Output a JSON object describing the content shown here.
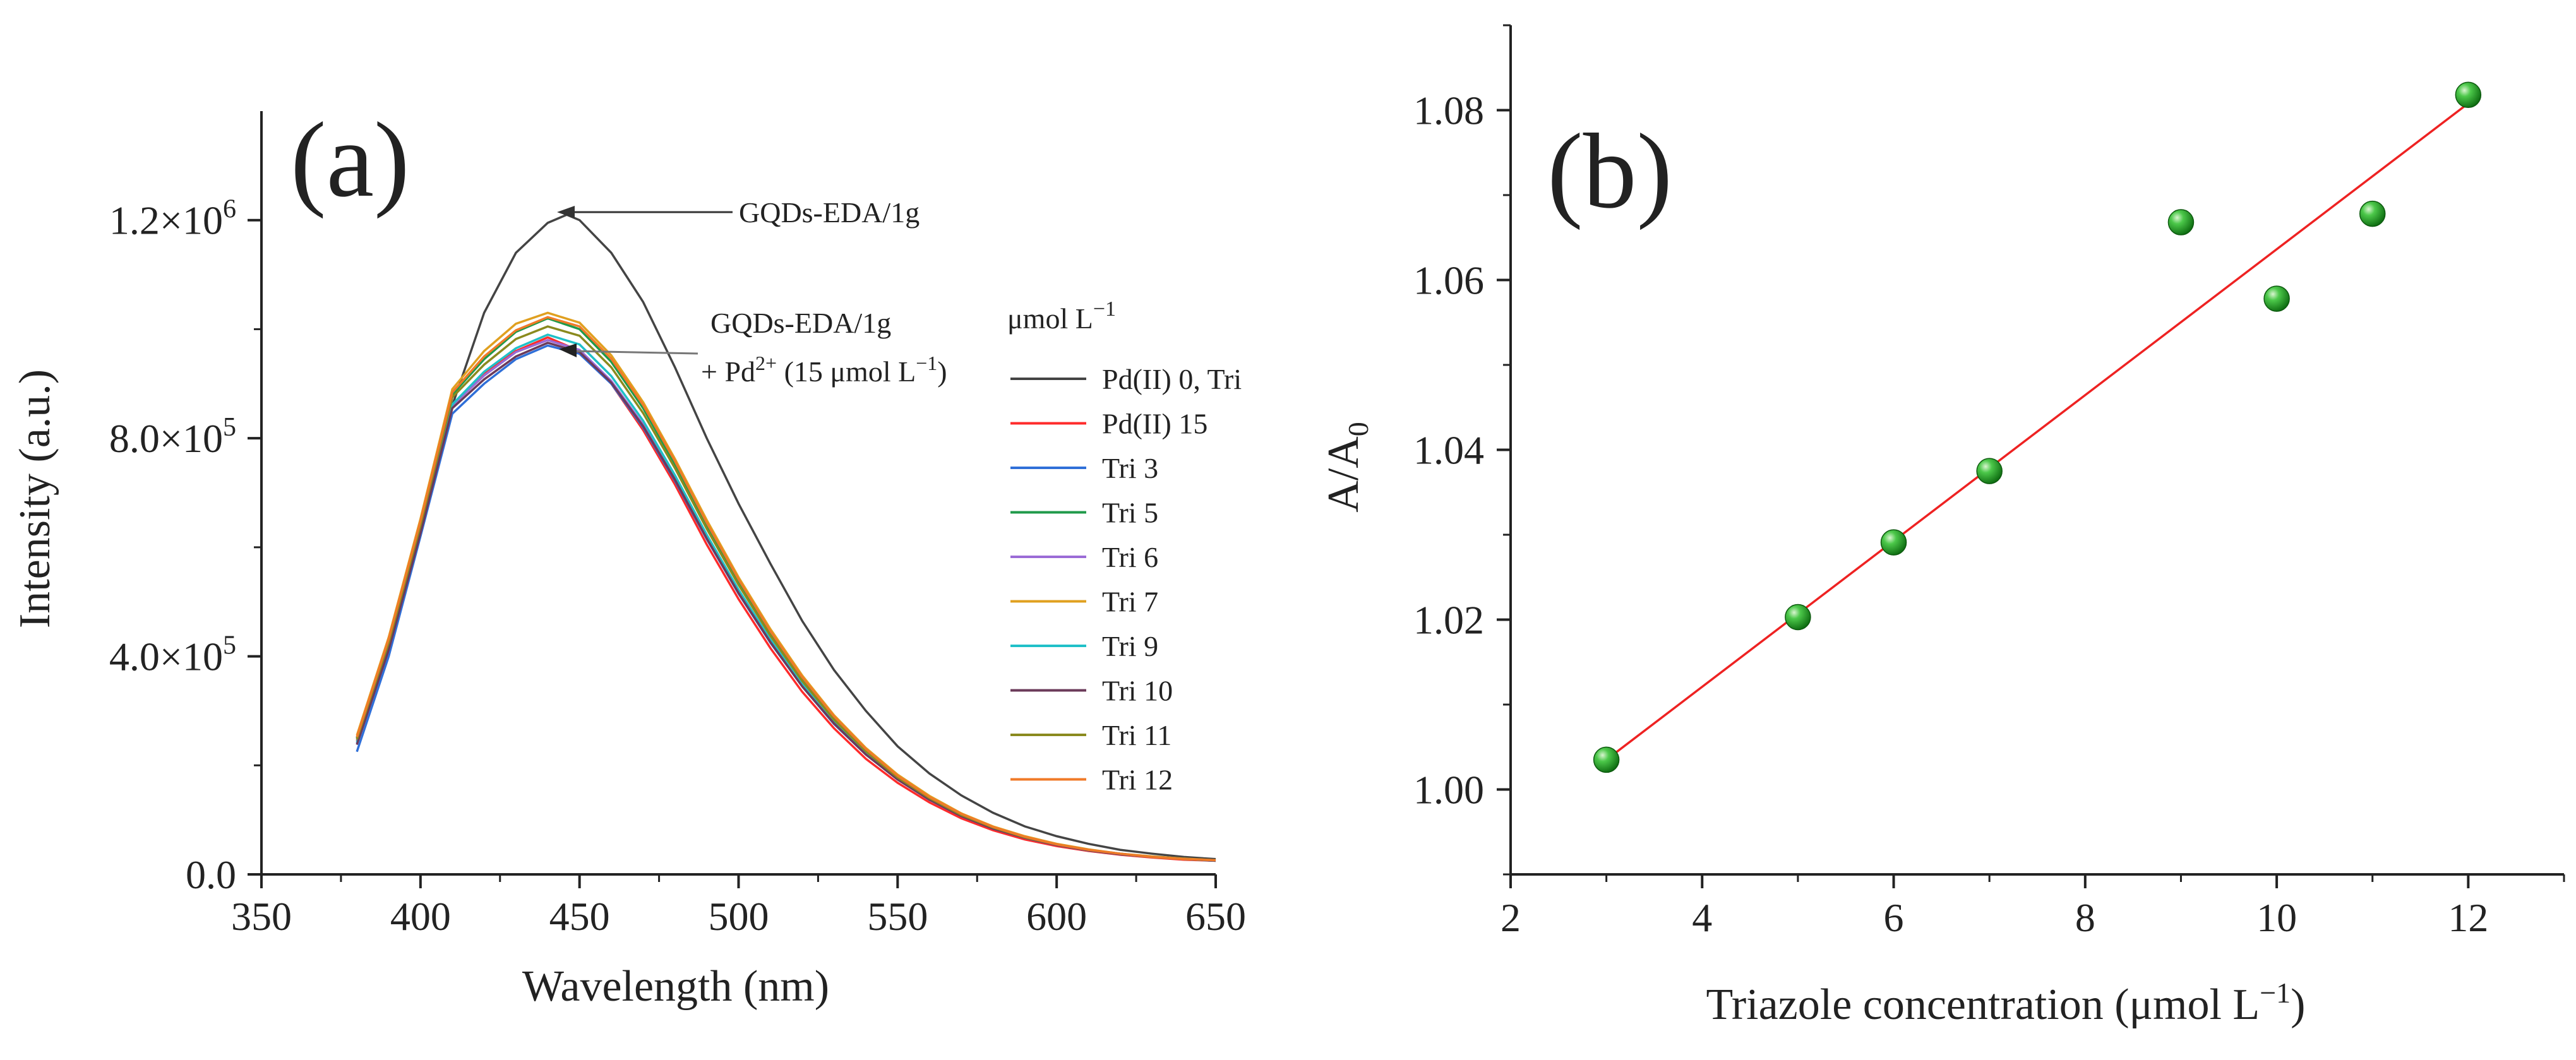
{
  "chart_data": [
    {
      "panel": "(a)",
      "type": "line",
      "xlabel": "Wavelength (nm)",
      "ylabel": "Intensity (a.u.)",
      "xlim": [
        350,
        650
      ],
      "ylim": [
        0,
        1400000
      ],
      "x_ticks": [
        350,
        400,
        450,
        500,
        550,
        600,
        650
      ],
      "x_tick_labels": [
        "350",
        "400",
        "450",
        "500",
        "550",
        "600",
        "650"
      ],
      "y_ticks": [
        0,
        400000,
        800000,
        1200000
      ],
      "y_tick_labels": [
        {
          "mantissa": "0.0",
          "exponent": ""
        },
        {
          "mantissa": "4.0×10",
          "exponent": "5"
        },
        {
          "mantissa": "8.0×10",
          "exponent": "5"
        },
        {
          "mantissa": "1.2×10",
          "exponent": "6"
        }
      ],
      "legend_title": {
        "text": "μmol L",
        "superscript": "−1"
      },
      "annotations": [
        {
          "text": "GQDs-EDA/1g",
          "arrow_to": [
            446,
            1210000
          ]
        },
        {
          "line1": "GQDs-EDA/1g",
          "line2_pre": "+ Pd",
          "line2_sup": "2+",
          "line2_mid": " (15 μmol L",
          "line2_sup2": "−1",
          "line2_post": ")",
          "arrow_to": [
            442,
            970000
          ]
        }
      ],
      "series": [
        {
          "name": "Pd(II) 0, Tri",
          "color": "#444444",
          "x": [
            380,
            390,
            400,
            410,
            420,
            430,
            440,
            446,
            450,
            460,
            470,
            480,
            490,
            500,
            510,
            520,
            530,
            540,
            550,
            560,
            570,
            580,
            590,
            600,
            610,
            620,
            630,
            640,
            650
          ],
          "y": [
            250000,
            430000,
            640000,
            860000,
            1030000,
            1140000,
            1195000,
            1210000,
            1200000,
            1140000,
            1050000,
            930000,
            800000,
            680000,
            570000,
            465000,
            375000,
            300000,
            235000,
            185000,
            145000,
            113000,
            88000,
            70000,
            56000,
            45000,
            38000,
            32000,
            28000
          ]
        },
        {
          "name": "Pd(II) 15",
          "color": "#ff2b2b",
          "x": [
            380,
            390,
            400,
            410,
            420,
            430,
            440,
            450,
            460,
            470,
            480,
            490,
            500,
            510,
            520,
            530,
            540,
            550,
            560,
            570,
            580,
            590,
            600,
            610,
            620,
            630,
            640,
            650
          ],
          "y": [
            245000,
            420000,
            630000,
            860000,
            920000,
            960000,
            985000,
            960000,
            900000,
            815000,
            715000,
            605000,
            505000,
            415000,
            335000,
            268000,
            212000,
            168000,
            132000,
            103000,
            81000,
            64000,
            52000,
            43000,
            36000,
            31000,
            27000,
            25000
          ]
        },
        {
          "name": "Tri 3",
          "color": "#2f6fd8",
          "x": [
            380,
            390,
            400,
            410,
            420,
            430,
            440,
            450,
            460,
            470,
            480,
            490,
            500,
            510,
            520,
            530,
            540,
            550,
            560,
            570,
            580,
            590,
            600,
            610,
            620,
            630,
            640,
            650
          ],
          "y": [
            225000,
            400000,
            620000,
            845000,
            900000,
            945000,
            970000,
            955000,
            900000,
            820000,
            722000,
            615000,
            515000,
            425000,
            345000,
            276000,
            220000,
            174000,
            137000,
            107000,
            84000,
            67000,
            54000,
            44000,
            37000,
            32000,
            28000,
            25000
          ]
        },
        {
          "name": "Tri 5",
          "color": "#1f9a4a",
          "x": [
            380,
            390,
            400,
            410,
            420,
            430,
            440,
            450,
            460,
            470,
            480,
            490,
            500,
            510,
            520,
            530,
            540,
            550,
            560,
            570,
            580,
            590,
            600,
            610,
            620,
            630,
            640,
            650
          ],
          "y": [
            250000,
            428000,
            645000,
            880000,
            945000,
            995000,
            1020000,
            1000000,
            940000,
            855000,
            752000,
            640000,
            536000,
            442000,
            358000,
            286000,
            227000,
            179000,
            141000,
            110000,
            86000,
            68000,
            55000,
            45000,
            38000,
            32000,
            28000,
            26000
          ]
        },
        {
          "name": "Tri 6",
          "color": "#9b6bd6",
          "x": [
            380,
            390,
            400,
            410,
            420,
            430,
            440,
            450,
            460,
            470,
            480,
            490,
            500,
            510,
            520,
            530,
            540,
            550,
            560,
            570,
            580,
            590,
            600,
            610,
            620,
            630,
            640,
            650
          ],
          "y": [
            240000,
            415000,
            630000,
            860000,
            915000,
            958000,
            980000,
            962000,
            905000,
            825000,
            726000,
            618000,
            518000,
            428000,
            347000,
            278000,
            221000,
            175000,
            138000,
            108000,
            85000,
            67000,
            54000,
            44000,
            37000,
            32000,
            28000,
            25000
          ]
        },
        {
          "name": "Tri 7",
          "color": "#e0a020",
          "x": [
            380,
            390,
            400,
            410,
            420,
            430,
            440,
            450,
            460,
            470,
            480,
            490,
            500,
            510,
            520,
            530,
            540,
            550,
            560,
            570,
            580,
            590,
            600,
            610,
            620,
            630,
            640,
            650
          ],
          "y": [
            255000,
            435000,
            652000,
            890000,
            960000,
            1010000,
            1030000,
            1012000,
            952000,
            866000,
            762000,
            650000,
            545000,
            450000,
            365000,
            292000,
            232000,
            183000,
            144000,
            112000,
            88000,
            70000,
            56000,
            46000,
            38000,
            33000,
            29000,
            26000
          ]
        },
        {
          "name": "Tri 9",
          "color": "#20c0c8",
          "x": [
            380,
            390,
            400,
            410,
            420,
            430,
            440,
            450,
            460,
            470,
            480,
            490,
            500,
            510,
            520,
            530,
            540,
            550,
            560,
            570,
            580,
            590,
            600,
            610,
            620,
            630,
            640,
            650
          ],
          "y": [
            242000,
            418000,
            632000,
            862000,
            922000,
            965000,
            990000,
            972000,
            914000,
            832000,
            732000,
            623000,
            522000,
            431000,
            349000,
            280000,
            222000,
            176000,
            138000,
            108000,
            85000,
            67000,
            54000,
            44000,
            37000,
            32000,
            28000,
            25000
          ]
        },
        {
          "name": "Tri 10",
          "color": "#6b3a5a",
          "x": [
            380,
            390,
            400,
            410,
            420,
            430,
            440,
            450,
            460,
            470,
            480,
            490,
            500,
            510,
            520,
            530,
            540,
            550,
            560,
            570,
            580,
            590,
            600,
            610,
            620,
            630,
            640,
            650
          ],
          "y": [
            238000,
            412000,
            626000,
            855000,
            908000,
            950000,
            975000,
            958000,
            902000,
            822000,
            724000,
            616000,
            516000,
            426000,
            345000,
            277000,
            220000,
            174000,
            137000,
            107000,
            84000,
            67000,
            54000,
            44000,
            37000,
            32000,
            28000,
            25000
          ]
        },
        {
          "name": "Tri 11",
          "color": "#8a8a1e",
          "x": [
            380,
            390,
            400,
            410,
            420,
            430,
            440,
            450,
            460,
            470,
            480,
            490,
            500,
            510,
            520,
            530,
            540,
            550,
            560,
            570,
            580,
            590,
            600,
            610,
            620,
            630,
            640,
            650
          ],
          "y": [
            248000,
            425000,
            640000,
            875000,
            935000,
            982000,
            1005000,
            988000,
            930000,
            846000,
            745000,
            634000,
            531000,
            438000,
            355000,
            284000,
            226000,
            178000,
            140000,
            109000,
            86000,
            68000,
            55000,
            45000,
            38000,
            32000,
            28000,
            26000
          ]
        },
        {
          "name": "Tri 12",
          "color": "#f07a28",
          "x": [
            380,
            390,
            400,
            410,
            420,
            430,
            440,
            450,
            460,
            470,
            480,
            490,
            500,
            510,
            520,
            530,
            540,
            550,
            560,
            570,
            580,
            590,
            600,
            610,
            620,
            630,
            640,
            650
          ],
          "y": [
            252000,
            432000,
            648000,
            884000,
            950000,
            998000,
            1022000,
            1005000,
            946000,
            861000,
            758000,
            645000,
            541000,
            446000,
            362000,
            290000,
            230000,
            181000,
            142000,
            111000,
            87000,
            69000,
            55000,
            45000,
            38000,
            32000,
            28000,
            26000
          ]
        }
      ]
    },
    {
      "panel": "(b)",
      "type": "scatter",
      "xlabel": {
        "pre": "Triazole concentration (μmol L",
        "sup": "−1",
        "post": ")"
      },
      "ylabel": {
        "main": "A/A",
        "sub": "0"
      },
      "xlim": [
        2,
        13
      ],
      "ylim": [
        0.99,
        1.09
      ],
      "x_ticks": [
        2,
        4,
        6,
        8,
        10,
        12
      ],
      "x_tick_labels": [
        "2",
        "4",
        "6",
        "8",
        "10",
        "12"
      ],
      "y_ticks": [
        1.0,
        1.02,
        1.04,
        1.06,
        1.08
      ],
      "y_tick_labels": [
        "1.00",
        "1.02",
        "1.04",
        "1.06",
        "1.08"
      ],
      "points": {
        "x": [
          3,
          5,
          6,
          7,
          9,
          10,
          11,
          12
        ],
        "y": [
          1.0035,
          1.0203,
          1.0291,
          1.0375,
          1.0668,
          1.0578,
          1.0678,
          1.0818
        ],
        "color": "#1c9e1c"
      },
      "fit_line": {
        "x": [
          3,
          12
        ],
        "y": [
          1.0035,
          1.0808
        ],
        "color": "#ee2222"
      }
    }
  ]
}
